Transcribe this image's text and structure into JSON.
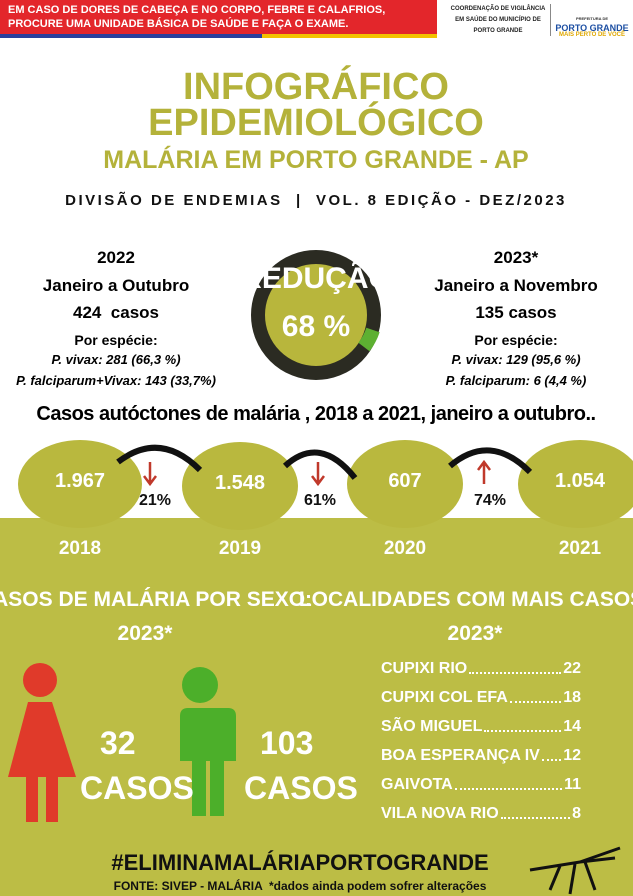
{
  "header": {
    "banner": [
      "EM CASO DE DORES DE CABEÇA E NO CORPO, FEBRE E CALAFRIOS,",
      "PROCURE UMA UNIDADE BÁSICA DE SAÚDE E FAÇA O EXAME."
    ],
    "org": [
      "COORDENAÇÃO DE VIGILÂNCIA",
      "EM SAÚDE DO MUNICÍPIO DE",
      "PORTO GRANDE"
    ],
    "logo": [
      "PREFEITURA DE",
      "PORTO GRANDE",
      "MAIS PERTO DE VOCÊ"
    ]
  },
  "title": {
    "lines": [
      "INFOGRÁFICO",
      "EPIDEMIOLÓGICO"
    ],
    "subtitle": "MALÁRIA EM PORTO GRANDE - AP",
    "edition": "DIVISÃO DE ENDEMIAS  |  VOL. 8 EDIÇÃO - DEZ/2023"
  },
  "comparison": {
    "left": {
      "year": "2022",
      "period": "Janeiro a Outubro",
      "cases": "424  casos",
      "species_label": "Por espécie:",
      "species": [
        "P. vivax: 281 (66,3 %)",
        "P. falciparum+Vivax: 143 (33,7%)"
      ]
    },
    "center": {
      "label": "REDUÇÃO",
      "value": "68 %"
    },
    "right": {
      "year": "2023*",
      "period": "Janeiro a Novembro",
      "cases": "135 casos",
      "species_label": "Por espécie:",
      "species": [
        "P. vivax: 129 (95,6 %)",
        "P. falciparum: 6 (4,4 %)"
      ]
    }
  },
  "autochthonous": {
    "title": "Casos autóctones de malária , 2018 a 2021, janeiro a outubro..",
    "years": [
      {
        "year": "2018",
        "value": "1.967"
      },
      {
        "year": "2019",
        "value": "1.548"
      },
      {
        "year": "2020",
        "value": "607"
      },
      {
        "year": "2021",
        "value": "1.054"
      }
    ],
    "changes": [
      "21%",
      "61%",
      "74%"
    ]
  },
  "sex": {
    "title": "CASOS DE MALÁRIA POR SEXO:",
    "year": "2023*",
    "female": {
      "value": "32",
      "unit": "CASOS"
    },
    "male": {
      "value": "103",
      "unit": "CASOS"
    }
  },
  "localities": {
    "title": "LOCALIDADES COM MAIS CASOS:",
    "year": "2023*",
    "rows": [
      [
        "CUPIXI RIO",
        "22"
      ],
      [
        "CUPIXI COL EFA",
        "18"
      ],
      [
        "SÃO MIGUEL",
        "14"
      ],
      [
        "BOA ESPERANÇA IV",
        "12"
      ],
      [
        "GAIVOTA",
        "11"
      ],
      [
        "VILA NOVA RIO",
        "8"
      ]
    ]
  },
  "footer": {
    "hashtag": "#ELIMINAMALÁRIAPORTOGRANDE",
    "source": "FONTE: SIVEP - MALÁRIA  *dados ainda podem sofrer alterações"
  }
}
